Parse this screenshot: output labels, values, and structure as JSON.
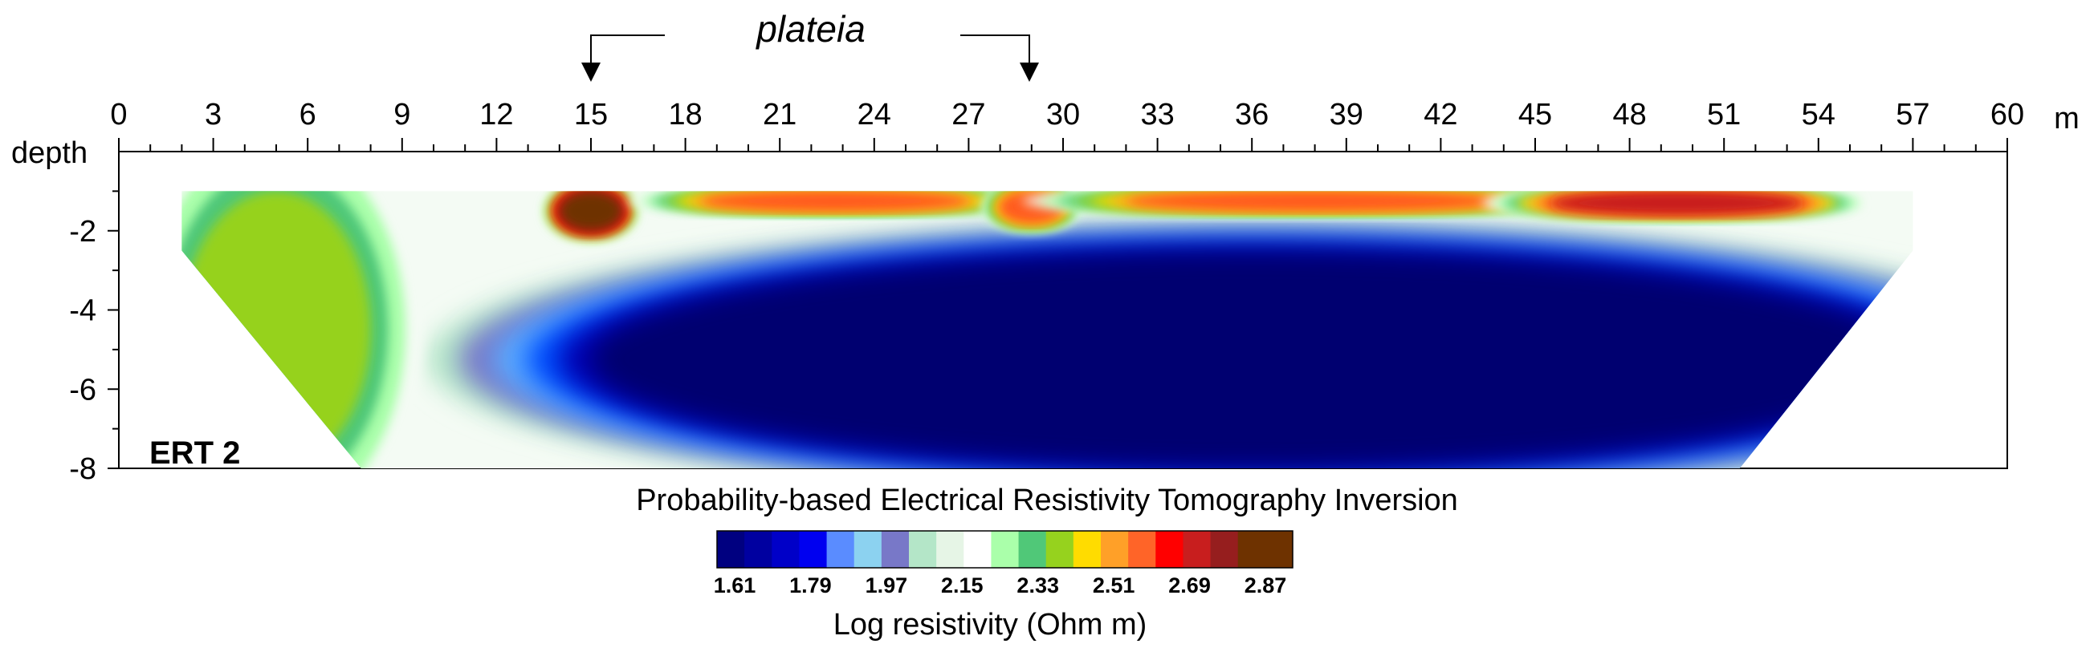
{
  "chart_data": {
    "type": "heatmap",
    "title": "Probability-based Electrical Resistivity Tomography Inversion",
    "panel_label": "ERT 2",
    "annotation": {
      "text": "plateia",
      "arrows_at_x": [
        15,
        29
      ]
    },
    "x_unit": "m",
    "y_label": "depth",
    "xlim": [
      0,
      60
    ],
    "ylim": [
      -8,
      0
    ],
    "x_ticks": [
      0,
      3,
      6,
      9,
      12,
      15,
      18,
      21,
      24,
      27,
      30,
      33,
      36,
      39,
      42,
      45,
      48,
      51,
      54,
      57,
      60
    ],
    "x_tick_labels": [
      "0",
      "3",
      "6",
      "9",
      "12",
      "15",
      "18",
      "21",
      "24",
      "27",
      "30",
      "33",
      "36",
      "39",
      "42",
      "45",
      "48",
      "51",
      "54",
      "57",
      "60"
    ],
    "y_ticks": [
      -2,
      -4,
      -6,
      -8
    ],
    "y_tick_labels": [
      "-2",
      "-4",
      "-6",
      "-8"
    ],
    "section_outline_x": [
      2,
      57,
      57,
      51.5,
      7.7,
      2
    ],
    "section_outline_y": [
      -1,
      -1,
      -2.5,
      -8,
      -8,
      -2.5
    ],
    "colorbar": {
      "label": "Log resistivity (Ohm m)",
      "tick_labels": [
        "1.61",
        "1.79",
        "1.97",
        "2.15",
        "2.33",
        "2.51",
        "2.69",
        "2.87"
      ],
      "colors": [
        "#000080",
        "#0000a0",
        "#0000c8",
        "#0000f0",
        "#5a8cff",
        "#8cd2f0",
        "#7878c8",
        "#b4e6c8",
        "#e6f5e6",
        "#ffffff",
        "#aaffaa",
        "#50c878",
        "#96d21e",
        "#ffdc00",
        "#ffa028",
        "#ff6428",
        "#ff0000",
        "#c81e1e",
        "#961e1e",
        "#6e3200",
        "#6e3200"
      ]
    },
    "anomalies": [
      {
        "name": "low-resistivity-body",
        "x": [
          15,
          57
        ],
        "depth": [
          -2.5,
          -8
        ],
        "log_resistivity": 1.61
      },
      {
        "name": "high-resistivity-west",
        "x": [
          2,
          8
        ],
        "depth": [
          -1,
          -8
        ],
        "log_resistivity": 2.4
      },
      {
        "name": "high-resistivity-15m",
        "x": [
          14,
          16
        ],
        "depth": [
          -1,
          -2
        ],
        "log_resistivity": 2.87
      },
      {
        "name": "high-resistivity-19-27m",
        "x": [
          18.5,
          27
        ],
        "depth": [
          -1,
          -1.5
        ],
        "log_resistivity": 2.6
      },
      {
        "name": "high-resistivity-29m",
        "x": [
          28,
          30
        ],
        "depth": [
          -1,
          -1.8
        ],
        "log_resistivity": 2.6
      },
      {
        "name": "high-resistivity-32-44m",
        "x": [
          32,
          44
        ],
        "depth": [
          -1,
          -1.5
        ],
        "log_resistivity": 2.6
      },
      {
        "name": "high-resistivity-46-53m",
        "x": [
          45.5,
          53.5
        ],
        "depth": [
          -1,
          -1.6
        ],
        "log_resistivity": 2.7
      }
    ]
  }
}
